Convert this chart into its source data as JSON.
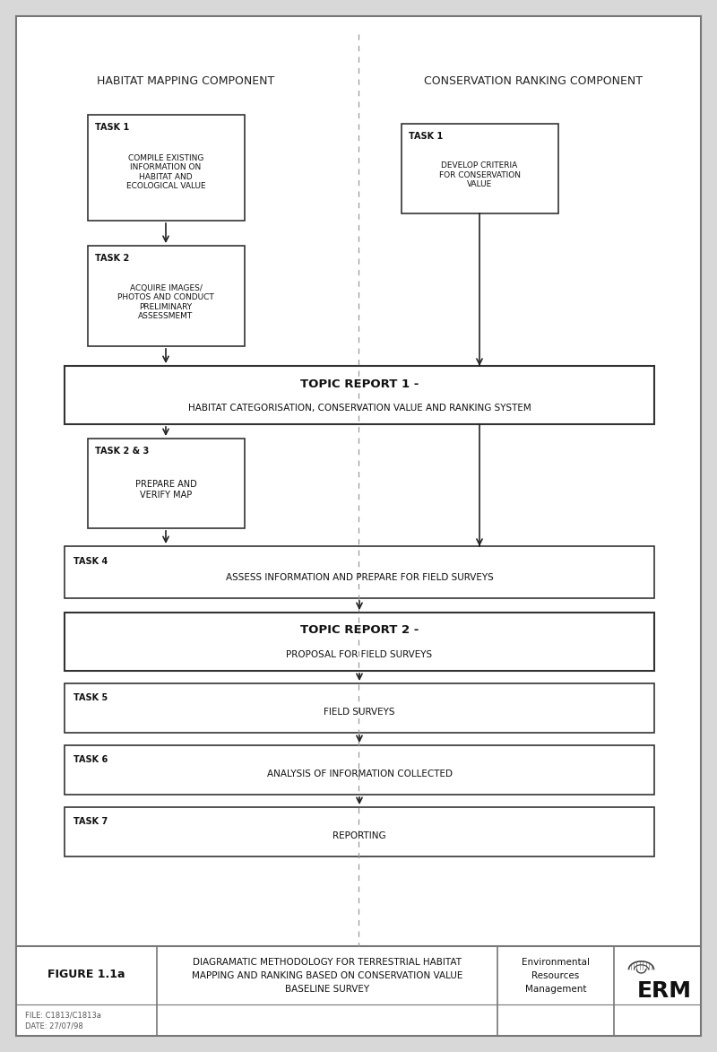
{
  "bg_color": "#d8d8d8",
  "page_bg": "#ffffff",
  "border_color": "#444444",
  "text_color": "#111111",
  "header_left": "HABITAT MAPPING COMPONENT",
  "header_right": "CONSERVATION RANKING COMPONENT",
  "footer": {
    "figure_label": "FIGURE 1.1a",
    "title_line1": "DIAGRAMATIC METHODOLOGY FOR TERRESTRIAL HABITAT",
    "title_line2": "MAPPING AND RANKING BASED ON CONSERVATION VALUE",
    "title_line3": "BASELINE SURVEY",
    "company_line1": "Environmental",
    "company_line2": "Resources",
    "company_line3": "Management",
    "company_abbr": "ERM",
    "file_text": "FILE: C1813/C1813a",
    "date_text": "DATE: 27/07/98"
  }
}
